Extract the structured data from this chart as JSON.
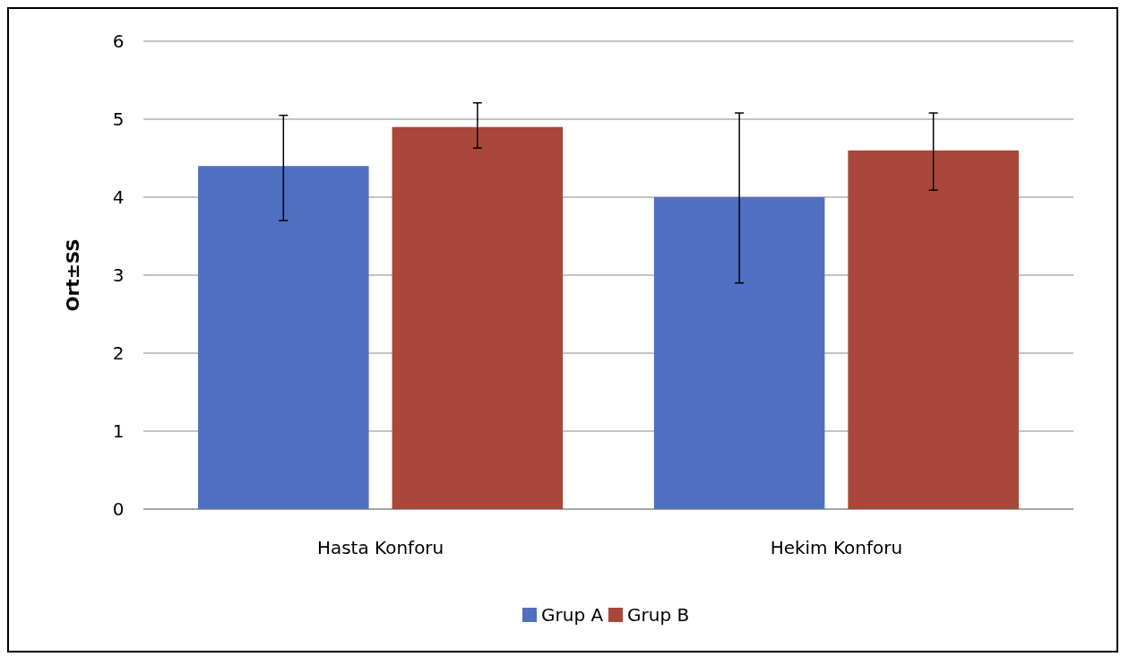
{
  "chart_data": {
    "type": "bar",
    "ylabel": "Ort±SS",
    "categories": [
      "Hasta Konforu",
      "Hekim Konforu"
    ],
    "series": [
      {
        "name": "Grup A",
        "color": "#4f6fc0",
        "values": [
          4.4,
          4.0
        ],
        "errors": [
          [
            3.7,
            5.05
          ],
          [
            2.9,
            5.08
          ]
        ]
      },
      {
        "name": "Grup B",
        "color": "#a9473a",
        "values": [
          4.9,
          4.6
        ],
        "errors": [
          [
            4.63,
            5.21
          ],
          [
            4.09,
            5.08
          ]
        ]
      }
    ],
    "ylim": [
      0,
      6
    ],
    "yticks": [
      0,
      1,
      2,
      3,
      4,
      5,
      6
    ],
    "grid": "y",
    "legend": "bottom"
  }
}
